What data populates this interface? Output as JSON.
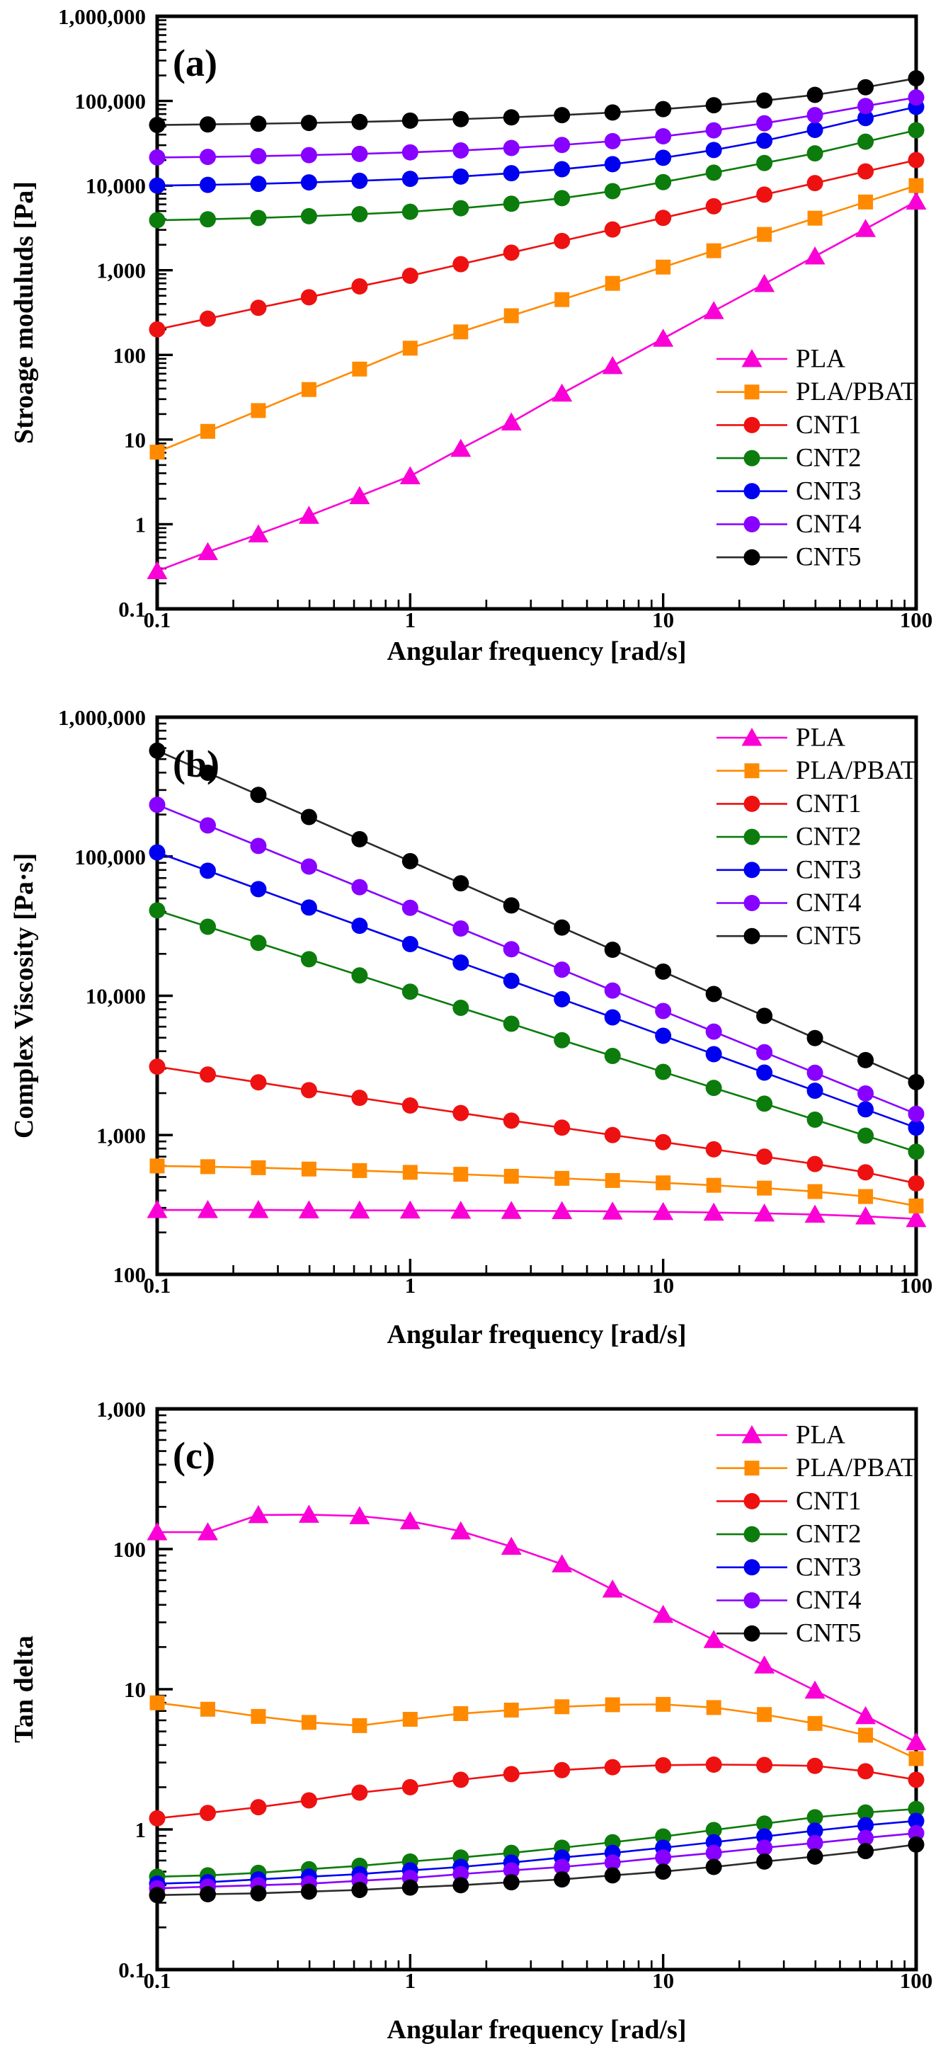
{
  "figure": {
    "background": "#ffffff",
    "x_axis_label": "Angular frequency [rad/s]",
    "series_names": [
      "PLA",
      "PLA/PBAT",
      "CNT1",
      "CNT2",
      "CNT3",
      "CNT4",
      "CNT5"
    ],
    "colors": {
      "pla": "#fa00d6",
      "pla_pbat": "#ff8a00",
      "cnt1": "#ee1111",
      "cnt2": "#0c7c0c",
      "cnt3": "#0000f0",
      "cnt4": "#8800ff",
      "cnt5": "#000000",
      "cnt5_line": "#2b2b2b",
      "axis": "#000000"
    }
  },
  "chart_data": [
    {
      "type": "line",
      "panel_label": "(a)",
      "xlabel": "Angular frequency [rad/s]",
      "ylabel": "Stroage moduluds [Pa]",
      "xlim": [
        0.1,
        100
      ],
      "ylim": [
        0.1,
        1000000
      ],
      "x_tick_labels": [
        "0.1",
        "1",
        "10",
        "100"
      ],
      "y_tick_labels": [
        "1,000,000",
        "100,000",
        "10,000",
        "1,000",
        "100",
        "10",
        "1",
        "0.1"
      ],
      "grid": false,
      "legend_position": "middle-right",
      "x": [
        0.1,
        0.1585,
        0.2512,
        0.3981,
        0.631,
        1,
        1.585,
        2.512,
        3.981,
        6.31,
        10,
        15.85,
        25.12,
        39.81,
        63.1,
        100
      ],
      "series": [
        {
          "name": "PLA",
          "marker": "triangle",
          "color": "#fa00d6",
          "values": [
            0.28,
            0.47,
            0.76,
            1.26,
            2.15,
            3.7,
            7.8,
            16,
            35,
            74,
            156,
            330,
            690,
            1460,
            3080,
            6500
          ]
        },
        {
          "name": "PLA/PBAT",
          "marker": "square",
          "color": "#ff8a00",
          "values": [
            7.1,
            12.5,
            22,
            39,
            68,
            120,
            187,
            290,
            450,
            700,
            1090,
            1700,
            2650,
            4120,
            6400,
            10000
          ]
        },
        {
          "name": "CNT1",
          "marker": "circle",
          "color": "#ee1111",
          "values": [
            200,
            268,
            360,
            480,
            645,
            860,
            1180,
            1615,
            2215,
            3030,
            4160,
            5700,
            7820,
            10700,
            14700,
            20000
          ]
        },
        {
          "name": "CNT2",
          "marker": "circle",
          "color": "#0c7c0c",
          "values": [
            3900,
            4000,
            4150,
            4350,
            4600,
            4900,
            5400,
            6100,
            7100,
            8600,
            11000,
            14200,
            18500,
            24000,
            33000,
            45000
          ]
        },
        {
          "name": "CNT3",
          "marker": "circle",
          "color": "#0000f0",
          "values": [
            10000,
            10200,
            10500,
            10900,
            11400,
            12000,
            12800,
            14000,
            15600,
            17900,
            21300,
            26300,
            33900,
            45500,
            62800,
            85000
          ]
        },
        {
          "name": "CNT4",
          "marker": "circle",
          "color": "#8800ff",
          "values": [
            21500,
            21800,
            22300,
            22900,
            23700,
            24700,
            26000,
            27800,
            30200,
            33500,
            38200,
            44900,
            54500,
            68000,
            87000,
            110000
          ]
        },
        {
          "name": "CNT5",
          "marker": "circle",
          "color": "#000000",
          "line_color": "#2b2b2b",
          "values": [
            52000,
            52800,
            53800,
            55000,
            56500,
            58500,
            61000,
            64000,
            68000,
            73000,
            80000,
            89000,
            101000,
            118000,
            145000,
            185000
          ]
        }
      ]
    },
    {
      "type": "line",
      "panel_label": "(b)",
      "xlabel": "Angular frequency [rad/s]",
      "ylabel": "Complex Viscosity [Pa·s]",
      "xlim": [
        0.1,
        100
      ],
      "ylim": [
        100,
        1000000
      ],
      "x_tick_labels": [
        "0.1",
        "1",
        "10",
        "100"
      ],
      "y_tick_labels": [
        "1,000,000",
        "100,000",
        "10,000",
        "1,000",
        "100"
      ],
      "grid": false,
      "legend_position": "top-right",
      "x": [
        0.1,
        0.1585,
        0.2512,
        0.3981,
        0.631,
        1,
        1.585,
        2.512,
        3.981,
        6.31,
        10,
        15.85,
        25.12,
        39.81,
        63.1,
        100
      ],
      "series": [
        {
          "name": "PLA",
          "marker": "triangle",
          "color": "#fa00d6",
          "values": [
            290,
            290,
            290,
            289,
            288,
            288,
            287,
            286,
            285,
            283,
            281,
            278,
            274,
            269,
            261,
            250
          ]
        },
        {
          "name": "PLA/PBAT",
          "marker": "square",
          "color": "#ff8a00",
          "values": [
            600,
            593,
            583,
            570,
            556,
            540,
            523,
            506,
            489,
            472,
            454,
            436,
            416,
            393,
            362,
            310
          ]
        },
        {
          "name": "CNT1",
          "marker": "circle",
          "color": "#ee1111",
          "values": [
            3100,
            2720,
            2390,
            2100,
            1850,
            1630,
            1440,
            1270,
            1130,
            1000,
            890,
            790,
            700,
            620,
            540,
            450
          ]
        },
        {
          "name": "CNT2",
          "marker": "circle",
          "color": "#0c7c0c",
          "values": [
            41000,
            31300,
            24000,
            18300,
            14000,
            10700,
            8200,
            6300,
            4800,
            3700,
            2840,
            2180,
            1680,
            1290,
            990,
            760
          ]
        },
        {
          "name": "CNT3",
          "marker": "circle",
          "color": "#0000f0",
          "values": [
            107000,
            79000,
            58300,
            43000,
            31800,
            23500,
            17300,
            12800,
            9450,
            7000,
            5160,
            3810,
            2810,
            2080,
            1530,
            1130
          ]
        },
        {
          "name": "CNT4",
          "marker": "circle",
          "color": "#8800ff",
          "values": [
            235000,
            167000,
            119000,
            84600,
            60200,
            42800,
            30400,
            21600,
            15400,
            10900,
            7780,
            5530,
            3930,
            2800,
            1990,
            1420
          ]
        },
        {
          "name": "CNT5",
          "marker": "circle",
          "color": "#000000",
          "line_color": "#2b2b2b",
          "values": [
            575000,
            399000,
            277000,
            192000,
            133000,
            92500,
            64200,
            44500,
            30900,
            21400,
            14900,
            10300,
            7170,
            4970,
            3450,
            2400
          ]
        }
      ]
    },
    {
      "type": "line",
      "panel_label": "(c)",
      "xlabel": "Angular frequency [rad/s]",
      "ylabel": "Tan delta",
      "xlim": [
        0.1,
        100
      ],
      "ylim": [
        0.1,
        1000
      ],
      "x_tick_labels": [
        "0.1",
        "1",
        "10",
        "100"
      ],
      "y_tick_labels": [
        "1,000",
        "100",
        "10",
        "1",
        "0.1"
      ],
      "grid": false,
      "legend_position": "top-right",
      "x": [
        0.1,
        0.1585,
        0.2512,
        0.3981,
        0.631,
        1,
        1.585,
        2.512,
        3.981,
        6.31,
        10,
        15.85,
        25.12,
        39.81,
        63.1,
        100
      ],
      "series": [
        {
          "name": "PLA",
          "marker": "triangle",
          "color": "#fa00d6",
          "values": [
            132,
            132,
            175,
            176,
            172,
            158,
            134,
            104,
            78,
            51.5,
            34,
            22.5,
            14.8,
            9.8,
            6.45,
            4.2
          ]
        },
        {
          "name": "PLA/PBAT",
          "marker": "square",
          "color": "#ff8a00",
          "values": [
            8.0,
            7.2,
            6.4,
            5.8,
            5.5,
            6.1,
            6.7,
            7.1,
            7.5,
            7.75,
            7.8,
            7.4,
            6.6,
            5.7,
            4.7,
            3.2
          ]
        },
        {
          "name": "CNT1",
          "marker": "circle",
          "color": "#ee1111",
          "values": [
            1.2,
            1.31,
            1.44,
            1.61,
            1.83,
            2.0,
            2.26,
            2.48,
            2.65,
            2.78,
            2.87,
            2.9,
            2.88,
            2.84,
            2.6,
            2.26
          ]
        },
        {
          "name": "CNT2",
          "marker": "circle",
          "color": "#0c7c0c",
          "values": [
            0.46,
            0.47,
            0.49,
            0.52,
            0.55,
            0.59,
            0.63,
            0.68,
            0.74,
            0.81,
            0.89,
            0.99,
            1.1,
            1.22,
            1.32,
            1.4
          ]
        },
        {
          "name": "CNT3",
          "marker": "circle",
          "color": "#0000f0",
          "values": [
            0.41,
            0.42,
            0.44,
            0.46,
            0.48,
            0.51,
            0.54,
            0.58,
            0.63,
            0.68,
            0.74,
            0.81,
            0.89,
            0.98,
            1.07,
            1.15
          ]
        },
        {
          "name": "CNT4",
          "marker": "circle",
          "color": "#8800ff",
          "values": [
            0.38,
            0.39,
            0.4,
            0.41,
            0.43,
            0.45,
            0.48,
            0.51,
            0.54,
            0.58,
            0.63,
            0.68,
            0.74,
            0.8,
            0.87,
            0.94
          ]
        },
        {
          "name": "CNT5",
          "marker": "circle",
          "color": "#000000",
          "line_color": "#2b2b2b",
          "values": [
            0.34,
            0.345,
            0.35,
            0.36,
            0.37,
            0.385,
            0.4,
            0.42,
            0.44,
            0.47,
            0.5,
            0.54,
            0.59,
            0.64,
            0.7,
            0.78
          ]
        }
      ]
    }
  ]
}
